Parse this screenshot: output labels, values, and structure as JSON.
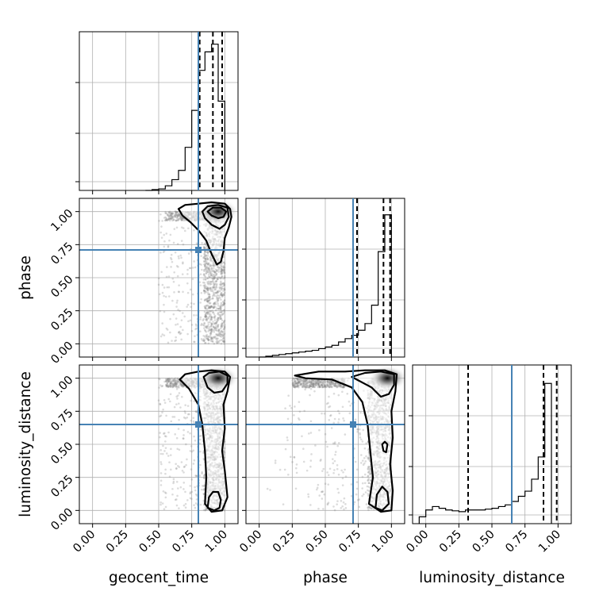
{
  "chart_data": {
    "type": "scatter",
    "params": [
      "geocent_time",
      "phase",
      "luminosity_distance"
    ],
    "tick_labels": [
      "0.00",
      "0.25",
      "0.50",
      "0.75",
      "1.00"
    ],
    "axis_range": [
      -0.1,
      1.1
    ],
    "truths": {
      "geocent_time": 0.8,
      "phase": 0.71,
      "luminosity_distance": 0.65
    },
    "grid": true,
    "marginals": [
      {
        "param": "geocent_time",
        "hist_range": [
          -0.1,
          1.1
        ],
        "bins_start": 0.4,
        "bin_width": 0.05,
        "heights": [
          0.0,
          0.005,
          0.01,
          0.03,
          0.07,
          0.13,
          0.28,
          0.52,
          0.78,
          0.9,
          0.95,
          0.58
        ],
        "ymax": 1.0,
        "quantiles": [
          0.81,
          0.91,
          0.98
        ]
      },
      {
        "param": "phase",
        "hist_range": [
          -0.1,
          1.1
        ],
        "bins_start": 0.0,
        "bin_width": 0.05,
        "heights": [
          0.0,
          0.005,
          0.01,
          0.015,
          0.02,
          0.025,
          0.03,
          0.035,
          0.04,
          0.05,
          0.06,
          0.07,
          0.09,
          0.11,
          0.13,
          0.16,
          0.2,
          0.31,
          0.63,
          0.85
        ],
        "ymax": 0.92,
        "quantiles": [
          0.74,
          0.94,
          0.99
        ]
      },
      {
        "param": "luminosity_distance",
        "hist_range": [
          -0.1,
          1.1
        ],
        "bins_start": -0.05,
        "bin_width": 0.05,
        "heights": [
          0.04,
          0.08,
          0.1,
          0.09,
          0.08,
          0.075,
          0.07,
          0.08,
          0.08,
          0.08,
          0.085,
          0.09,
          0.1,
          0.11,
          0.13,
          0.16,
          0.19,
          0.26,
          0.39,
          0.82
        ],
        "ymax": 0.9,
        "quantiles": [
          0.32,
          0.89,
          0.99
        ]
      }
    ],
    "pairs": [
      {
        "x": "geocent_time",
        "y": "phase",
        "contours": [
          [
            [
              0.65,
              1.02
            ],
            [
              0.7,
              1.05
            ],
            [
              0.8,
              1.06
            ],
            [
              0.9,
              1.07
            ],
            [
              1.0,
              1.06
            ],
            [
              1.04,
              1.02
            ],
            [
              1.05,
              0.96
            ],
            [
              1.03,
              0.88
            ],
            [
              1.0,
              0.8
            ],
            [
              0.99,
              0.7
            ],
            [
              0.97,
              0.62
            ],
            [
              0.94,
              0.6
            ],
            [
              0.9,
              0.68
            ],
            [
              0.86,
              0.78
            ],
            [
              0.8,
              0.86
            ],
            [
              0.74,
              0.92
            ],
            [
              0.68,
              0.97
            ],
            [
              0.65,
              1.02
            ]
          ],
          [
            [
              0.83,
              1.0
            ],
            [
              0.87,
              1.04
            ],
            [
              0.95,
              1.05
            ],
            [
              1.02,
              1.03
            ],
            [
              1.03,
              0.96
            ],
            [
              1.0,
              0.9
            ],
            [
              0.96,
              0.87
            ],
            [
              0.9,
              0.9
            ],
            [
              0.85,
              0.95
            ],
            [
              0.83,
              1.0
            ]
          ],
          [
            [
              0.87,
              1.0
            ],
            [
              0.91,
              1.03
            ],
            [
              0.97,
              1.03
            ],
            [
              1.01,
              1.0
            ],
            [
              0.99,
              0.96
            ],
            [
              0.95,
              0.95
            ],
            [
              0.9,
              0.97
            ],
            [
              0.87,
              1.0
            ]
          ]
        ],
        "density_peak": [
          0.95,
          1.0
        ],
        "scatter": {
          "x_range": [
            0.0,
            1.0
          ],
          "y_range": [
            0.0,
            1.0
          ],
          "count": 1600,
          "seed": 11
        }
      },
      {
        "x": "geocent_time",
        "y": "luminosity_distance",
        "contours": [
          [
            [
              0.66,
              0.99
            ],
            [
              0.7,
              1.03
            ],
            [
              0.8,
              1.05
            ],
            [
              0.9,
              1.06
            ],
            [
              1.0,
              1.05
            ],
            [
              1.04,
              1.01
            ],
            [
              1.02,
              0.9
            ],
            [
              0.99,
              0.8
            ],
            [
              1.0,
              0.62
            ],
            [
              0.98,
              0.45
            ],
            [
              1.0,
              0.3
            ],
            [
              1.02,
              0.1
            ],
            [
              0.98,
              0.0
            ],
            [
              0.9,
              -0.01
            ],
            [
              0.85,
              0.05
            ],
            [
              0.86,
              0.25
            ],
            [
              0.85,
              0.45
            ],
            [
              0.83,
              0.65
            ],
            [
              0.8,
              0.8
            ],
            [
              0.73,
              0.92
            ],
            [
              0.66,
              0.99
            ]
          ],
          [
            [
              0.84,
              1.01
            ],
            [
              0.88,
              1.04
            ],
            [
              0.96,
              1.05
            ],
            [
              1.02,
              1.02
            ],
            [
              1.02,
              0.96
            ],
            [
              0.98,
              0.9
            ],
            [
              0.92,
              0.89
            ],
            [
              0.87,
              0.93
            ],
            [
              0.84,
              1.01
            ]
          ],
          [
            [
              0.87,
              0.02
            ],
            [
              0.88,
              0.1
            ],
            [
              0.91,
              0.14
            ],
            [
              0.95,
              0.14
            ],
            [
              0.97,
              0.08
            ],
            [
              0.96,
              0.02
            ],
            [
              0.92,
              0.0
            ],
            [
              0.87,
              0.02
            ]
          ]
        ],
        "density_peak": [
          0.95,
          1.0
        ],
        "scatter": {
          "x_range": [
            0.0,
            1.0
          ],
          "y_range": [
            0.0,
            1.0
          ],
          "count": 1600,
          "seed": 23
        }
      },
      {
        "x": "phase",
        "y": "luminosity_distance",
        "contours": [
          [
            [
              0.27,
              1.02
            ],
            [
              0.45,
              1.05
            ],
            [
              0.65,
              1.05
            ],
            [
              0.8,
              1.06
            ],
            [
              0.95,
              1.06
            ],
            [
              1.04,
              1.03
            ],
            [
              1.03,
              0.9
            ],
            [
              1.0,
              0.75
            ],
            [
              1.01,
              0.55
            ],
            [
              0.99,
              0.35
            ],
            [
              1.01,
              0.15
            ],
            [
              1.0,
              0.0
            ],
            [
              0.92,
              -0.01
            ],
            [
              0.83,
              0.05
            ],
            [
              0.86,
              0.25
            ],
            [
              0.84,
              0.45
            ],
            [
              0.82,
              0.65
            ],
            [
              0.78,
              0.82
            ],
            [
              0.7,
              0.93
            ],
            [
              0.55,
              0.99
            ],
            [
              0.35,
              1.0
            ],
            [
              0.27,
              1.02
            ]
          ],
          [
            [
              0.7,
              1.01
            ],
            [
              0.8,
              1.04
            ],
            [
              0.92,
              1.05
            ],
            [
              1.02,
              1.03
            ],
            [
              1.02,
              0.95
            ],
            [
              0.98,
              0.88
            ],
            [
              0.92,
              0.86
            ],
            [
              0.85,
              0.93
            ],
            [
              0.7,
              1.01
            ]
          ],
          [
            [
              0.93,
              0.5
            ],
            [
              0.94,
              0.45
            ],
            [
              0.96,
              0.44
            ],
            [
              0.97,
              0.5
            ],
            [
              0.95,
              0.52
            ],
            [
              0.93,
              0.5
            ]
          ],
          [
            [
              0.88,
              0.02
            ],
            [
              0.89,
              0.12
            ],
            [
              0.93,
              0.18
            ],
            [
              0.97,
              0.14
            ],
            [
              0.98,
              0.05
            ],
            [
              0.93,
              0.0
            ],
            [
              0.88,
              0.02
            ]
          ]
        ],
        "density_peak": [
          0.97,
          1.0
        ],
        "scatter": {
          "x_range": [
            0.0,
            1.0
          ],
          "y_range": [
            0.0,
            1.0
          ],
          "count": 1600,
          "seed": 37
        }
      }
    ]
  }
}
